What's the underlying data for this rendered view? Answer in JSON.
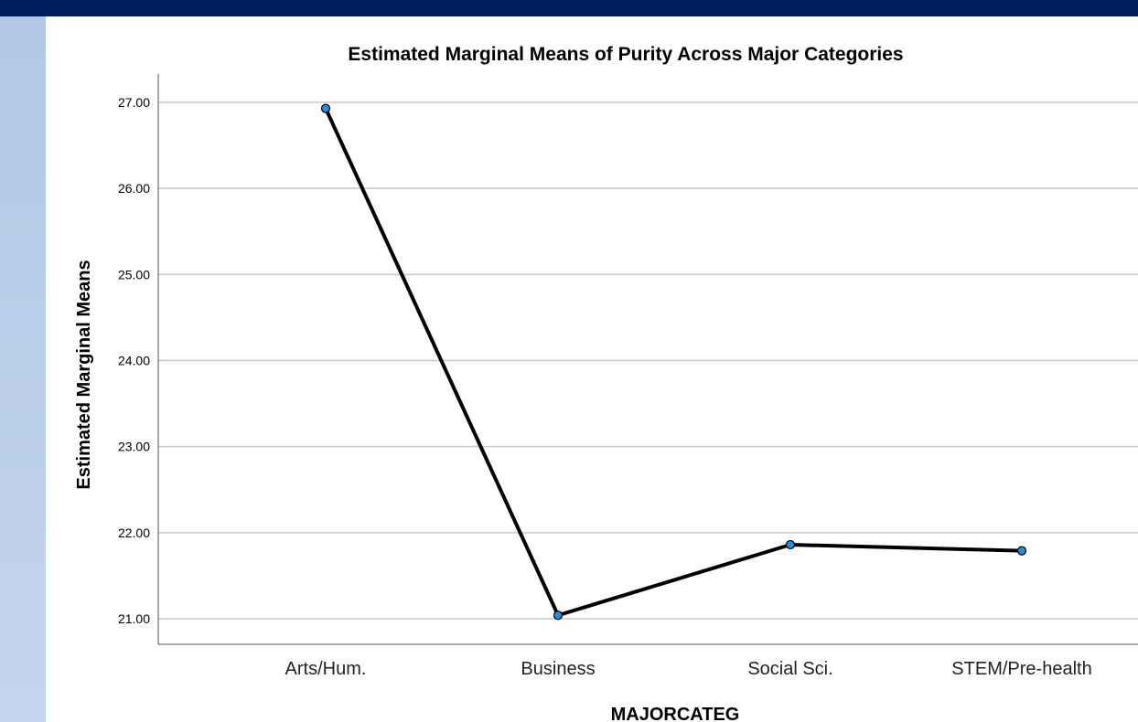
{
  "chart_data": {
    "type": "line",
    "title": "Estimated Marginal Means of Purity Across Major Categories",
    "xlabel": "MAJORCATEG",
    "ylabel": "Estimated Marginal Means",
    "categories": [
      "Arts/Hum.",
      "Business",
      "Social Sci.",
      "STEM/Pre-health"
    ],
    "values": [
      26.93,
      21.04,
      21.86,
      21.79
    ],
    "ylim": [
      21.0,
      27.0
    ],
    "yticks": [
      "21.00",
      "22.00",
      "23.00",
      "24.00",
      "25.00",
      "26.00",
      "27.00"
    ],
    "grid": true,
    "line_color": "#000000",
    "marker_color": "#1f8fe0"
  }
}
